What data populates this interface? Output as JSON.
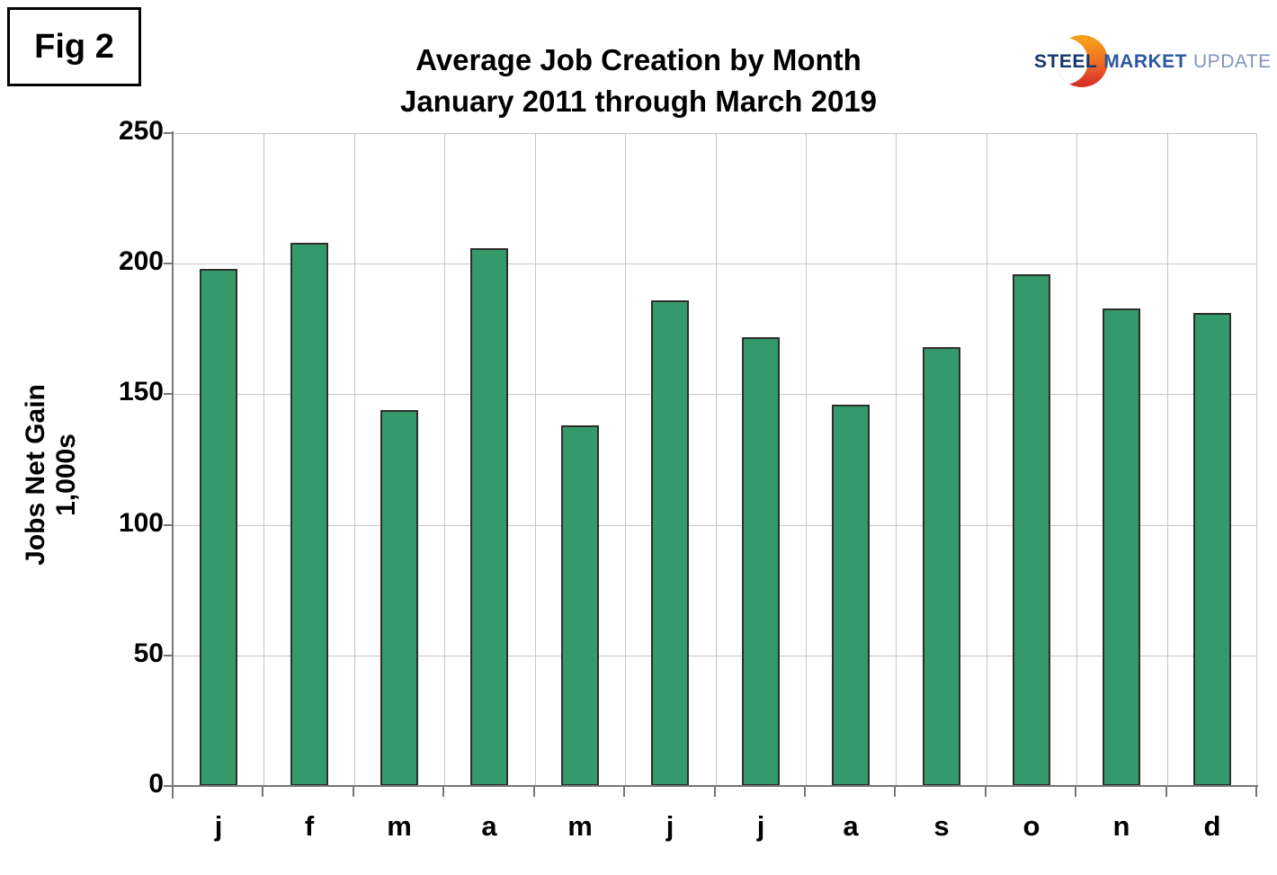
{
  "figure_label": "Fig 2",
  "logo": {
    "steel": "STEEL",
    "market": "MARKET",
    "update": "UPDATE",
    "steel_color": "#14366e",
    "market_color": "#2b57a5",
    "update_color": "#8095bf",
    "crescent_top_color": "#f89c1c",
    "crescent_bottom_color": "#d63227"
  },
  "chart_data": {
    "type": "bar",
    "title": "Average Job Creation by Month",
    "subtitle": "January 2011 through March 2019",
    "categories": [
      "j",
      "f",
      "m",
      "a",
      "m",
      "j",
      "j",
      "a",
      "s",
      "o",
      "n",
      "d"
    ],
    "values": [
      198,
      208,
      144,
      206,
      138,
      186,
      172,
      146,
      168,
      196,
      183,
      181
    ],
    "xlabel": "",
    "ylabel": "Jobs Net Gain 1,000s",
    "ylim": [
      0,
      250
    ],
    "yticks": [
      0,
      50,
      100,
      150,
      200,
      250
    ],
    "grid": true,
    "legend": "none",
    "bar_color": "#34996B",
    "bar_border_color": "#2e2e2e",
    "gridline_color": "#c6c6c6",
    "axis_color": "#767676"
  }
}
